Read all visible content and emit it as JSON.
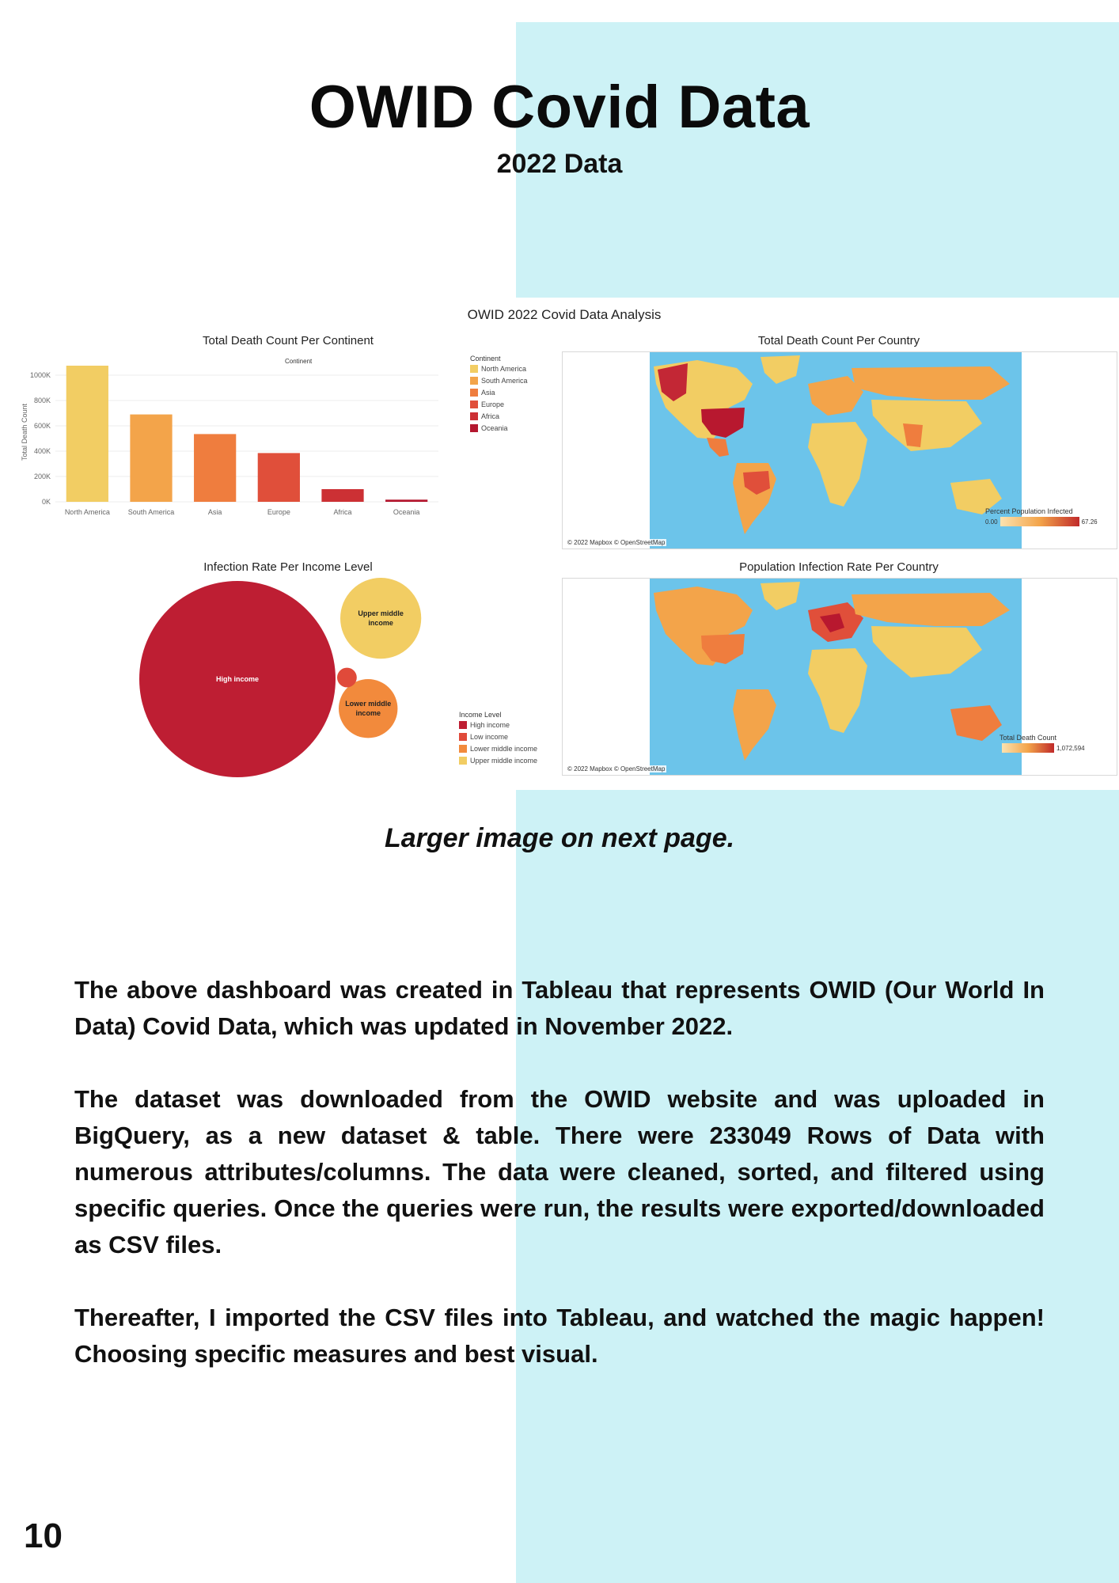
{
  "header": {
    "title": "OWID Covid Data",
    "subtitle": "2022 Data"
  },
  "dashboard": {
    "title": "OWID 2022 Covid Data Analysis",
    "bar_panel": {
      "title": "Total Death Count Per Continent",
      "header": "Continent",
      "ylabel": "Total Death Count",
      "ticks": [
        "0K",
        "200K",
        "400K",
        "600K",
        "800K",
        "1000K"
      ],
      "legend_title": "Continent"
    },
    "map_deaths": {
      "title": "Total Death Count Per Country",
      "credit": "© 2022 Mapbox © OpenStreetMap",
      "legend_title": "Percent Population Infected",
      "legend_min": "0.00",
      "legend_max": "67.26"
    },
    "bubble_panel": {
      "title": "Infection Rate Per Income Level",
      "legend_title": "Income Level"
    },
    "map_infection": {
      "title": "Population Infection Rate Per Country",
      "credit": "© 2022 Mapbox © OpenStreetMap",
      "legend_title": "Total Death Count",
      "legend_min": "",
      "legend_max": "1,072,594"
    }
  },
  "chart_data": [
    {
      "type": "bar",
      "title": "Total Death Count Per Continent",
      "xlabel": "",
      "ylabel": "Total Death Count",
      "categories": [
        "North America",
        "South America",
        "Asia",
        "Europe",
        "Africa",
        "Oceania"
      ],
      "values": [
        1075000,
        690000,
        535000,
        385000,
        100000,
        17000
      ],
      "colors": [
        "#f2cd63",
        "#f3a44a",
        "#ef7d3e",
        "#e04f3a",
        "#cc3034",
        "#b4172f"
      ],
      "ylim": [
        0,
        1100000
      ],
      "grid": true,
      "legend_placement": "top-right"
    },
    {
      "type": "bubble",
      "title": "Infection Rate Per Income Level",
      "categories": [
        "High income",
        "Upper middle income",
        "Lower middle income",
        "Low income"
      ],
      "labels": [
        "High income",
        "Upper middle\nincome",
        "Lower middle\nincome",
        ""
      ],
      "values": [
        100,
        17,
        9,
        1
      ],
      "colors": [
        "#be1e33",
        "#f2cd63",
        "#f28a3c",
        "#e04a3a"
      ],
      "legend_placement": "bottom-right"
    }
  ],
  "caption": "Larger image on next page.",
  "body": {
    "p1": "The above dashboard was created in Tableau that represents OWID (Our World In Data) Covid Data, which was updated in November 2022.",
    "p2": "The dataset was downloaded from the OWID website and was uploaded in BigQuery, as a new dataset & table. There were 233049 Rows of Data with numerous attributes/columns. The data were cleaned, sorted, and filtered using specific queries. Once the queries were run, the results were exported/downloaded as CSV files.",
    "p3": "Thereafter, I imported the CSV files into Tableau, and watched the magic happen! Choosing specific measures and best visual."
  },
  "page_number": "10"
}
